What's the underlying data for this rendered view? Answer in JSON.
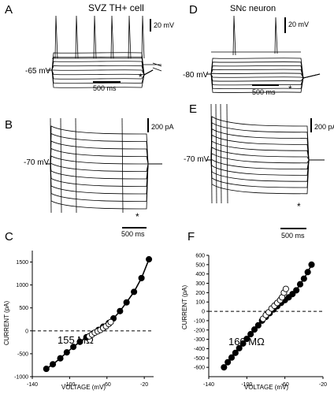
{
  "panels": {
    "A": {
      "letter": "A",
      "title": "SVZ TH+ cell",
      "vlabel": "-65 mV",
      "scale_v": "20 mV",
      "scale_t": "500 ms",
      "star": "*"
    },
    "B": {
      "letter": "B",
      "vlabel": "-70 mV",
      "scale_i": "200 pA",
      "scale_t": "500 ms",
      "star": "*"
    },
    "C": {
      "letter": "C",
      "resistance": "155 MΩ"
    },
    "D": {
      "letter": "D",
      "title": "SNc neuron",
      "vlabel": "-80 mV",
      "scale_v": "20 mV",
      "scale_t": "500 ms",
      "star": "*"
    },
    "E": {
      "letter": "E",
      "vlabel": "-70 mV",
      "scale_i": "200 pA",
      "scale_t": "500 ms",
      "star": "*"
    },
    "F": {
      "letter": "F",
      "resistance": "160 MΩ"
    }
  },
  "chart_data": [
    {
      "panel": "C",
      "type": "scatter",
      "xlabel": "VOLTAGE (mV)",
      "ylabel": "CURRENT (pA)",
      "xlim": [
        -140,
        -10
      ],
      "ylim": [
        -1000,
        1750
      ],
      "xticks": [
        -140,
        -100,
        -60,
        -20
      ],
      "yticks": [
        -1000,
        -500,
        0,
        500,
        1000,
        1500
      ],
      "zero_line": "dashed",
      "series": [
        {
          "marker": "filled",
          "x": [
            -125,
            -118,
            -110,
            -103,
            -96,
            -89,
            -82,
            -75,
            -69,
            -64,
            -58,
            -53,
            -46,
            -39,
            -31,
            -23,
            -15
          ],
          "y": [
            -830,
            -730,
            -600,
            -470,
            -350,
            -240,
            -140,
            -60,
            20,
            90,
            170,
            270,
            430,
            620,
            850,
            1150,
            1560
          ]
        },
        {
          "marker": "open",
          "x": [
            -79,
            -76,
            -73,
            -70,
            -67,
            -64,
            -61,
            -58,
            -56
          ],
          "y": [
            -120,
            -80,
            -40,
            -10,
            20,
            60,
            100,
            150,
            190
          ]
        }
      ]
    },
    {
      "panel": "F",
      "type": "scatter",
      "xlabel": "VOLTAGE (mV)",
      "ylabel": "CURRENT (pA)",
      "xlim": [
        -140,
        -20
      ],
      "ylim": [
        -700,
        600
      ],
      "xticks": [
        -140,
        -100,
        -60,
        -20
      ],
      "yticks": [
        -600,
        -500,
        -400,
        -300,
        -200,
        -100,
        0,
        100,
        200,
        300,
        400,
        500,
        600
      ],
      "zero_line": "dashed",
      "series": [
        {
          "marker": "filled",
          "x": [
            -124,
            -120,
            -116,
            -112,
            -108,
            -104,
            -100,
            -96,
            -92,
            -88,
            -84,
            -80,
            -76,
            -72,
            -68,
            -64,
            -60,
            -56,
            -52,
            -48,
            -44,
            -40,
            -36,
            -32
          ],
          "y": [
            -600,
            -545,
            -495,
            -445,
            -395,
            -345,
            -295,
            -245,
            -195,
            -150,
            -100,
            -60,
            -20,
            20,
            55,
            90,
            120,
            150,
            185,
            225,
            290,
            350,
            420,
            500
          ]
        },
        {
          "marker": "open",
          "x": [
            -83,
            -80,
            -77,
            -74,
            -71,
            -68,
            -65,
            -63,
            -61,
            -59
          ],
          "y": [
            -80,
            -40,
            -10,
            30,
            60,
            90,
            120,
            150,
            200,
            240
          ]
        }
      ]
    }
  ]
}
